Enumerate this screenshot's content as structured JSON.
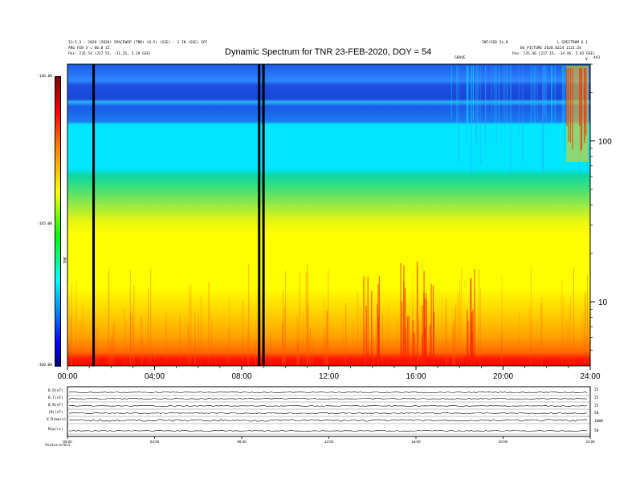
{
  "header": {
    "title": "Dynamic Spectrum for TNR 23-FEB-2020, DOY = 54",
    "left_line1": "11:5.3 - 2020 (2020) SPACEWSP (TNR) (0.5) (GSE) - 2 IN (GSE) SPC",
    "left_line2": "ARG FEB 3 = 80.0 32",
    "left_line3": "Pos: 235.54 (237.55, -31.25, 5.39 GSE)",
    "right_top_a": "INT/GSD 2a,0",
    "right_top_b": "L SPECTRUM 6.1",
    "right_line2": "BG_PICTURE 2020.0224 1121:Z4",
    "right_line3": "Pos: 235.46 (237.15, -34.46, 5.02 GSE)",
    "marker_label": "GRAVE",
    "right_corner_label": "4h3",
    "right_marker": "V"
  },
  "colorbar": {
    "label": "TNR",
    "ticks": [
      "-130.00",
      "-145.00",
      "-160.00"
    ]
  },
  "chart_data": {
    "type": "heatmap",
    "title": "Dynamic Spectrum for TNR 23-FEB-2020, DOY = 54",
    "x_ticks": [
      "00:00",
      "04:00",
      "08:00",
      "12:00",
      "16:00",
      "20:00",
      "24:00"
    ],
    "xlim_hours": [
      0,
      24
    ],
    "y_scale": "log",
    "y_ticks": [
      "10",
      "100"
    ],
    "ylim": [
      4,
      300
    ],
    "color_range": [
      -160,
      -130
    ],
    "vertical_black_lines_hours": [
      1.2,
      8.8,
      9.0
    ],
    "colors": {
      "bands_top_to_bottom": [
        "#1e64e6",
        "#00e6ff",
        "#24d67a",
        "#ffff00",
        "#ff9a00",
        "#ff0000"
      ],
      "colormap": [
        "#000080",
        "#0000ff",
        "#00ffff",
        "#00ff00",
        "#ffff00",
        "#ff8000",
        "#ff0000",
        "#800000"
      ]
    }
  },
  "bottom_panel": {
    "left_labels": [
      "B_R(nT)",
      "B_T(nT)",
      "B_N(nT)",
      "|B|(nT)",
      "V_R(km/s)",
      "N(p/cc)"
    ],
    "right_labels": [
      "25",
      "25",
      "25",
      "50",
      "1000",
      "50"
    ],
    "x_ticks": [
      "00:00",
      "04:00",
      "08:00",
      "12:00",
      "16:00",
      "20:00",
      "24:00"
    ],
    "footer_labels": [
      "Status:",
      "orbit"
    ]
  }
}
